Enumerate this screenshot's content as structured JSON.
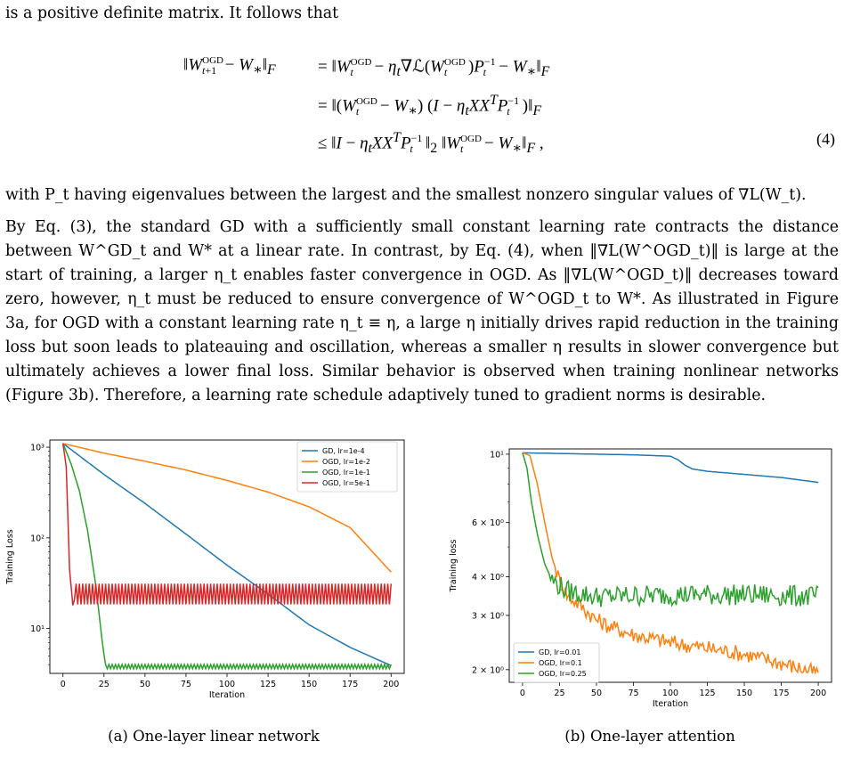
{
  "text": {
    "intro": "is a positive definite matrix. It follows that",
    "eq_number": "(4)",
    "eq_lhs": "‖W^OGD_{t+1} − W*‖_F",
    "eq_line1": "= ‖W^OGD_t − η_t∇L(W^OGD_t)P_t^{-1} − W*‖_F",
    "eq_line2": "= ‖(W^OGD_t − W*)(I − η_t X X^T P_t^{-1})‖_F",
    "eq_line3": "≤ ‖I − η_t X X^T P_t^{-1}‖_2 ‖W^OGD_t − W*‖_F ,",
    "after_eq": "with P_t having eigenvalues between the largest and the smallest nonzero singular values of ∇L(W_t).",
    "main_paragraph": "By Eq. (3), the standard GD with a sufficiently small constant learning rate contracts the distance between W^GD_t and W* at a linear rate. In contrast, by Eq. (4), when ‖∇L(W^OGD_t)‖ is large at the start of training, a larger η_t enables faster convergence in OGD. As ‖∇L(W^OGD_t)‖ decreases toward zero, however, η_t must be reduced to ensure convergence of W^OGD_t to W*. As illustrated in Figure 3a, for OGD with a constant learning rate η_t ≡ η, a large η initially drives rapid reduction in the training loss but soon leads to plateauing and oscillation, whereas a smaller η results in slower convergence but ultimately achieves a lower final loss. Similar behavior is observed when training nonlinear networks (Figure 3b). Therefore, a learning rate schedule adaptively tuned to gradient norms is desirable."
  },
  "captions": [
    "(a) One-layer linear network",
    "(b) One-layer attention"
  ],
  "chart_data": [
    {
      "type": "line",
      "title": "",
      "xlabel": "Iteration",
      "ylabel": "Training Loss",
      "yscale": "log",
      "xlim": [
        -8,
        208
      ],
      "ylim": [
        3.2,
        1200
      ],
      "xticks": [
        0,
        25,
        50,
        75,
        100,
        125,
        150,
        175,
        200
      ],
      "yticks": [
        {
          "v": 10,
          "label": "10¹"
        },
        {
          "v": 100,
          "label": "10²"
        },
        {
          "v": 1000,
          "label": "10³"
        }
      ],
      "legend_position": "top-right",
      "series": [
        {
          "name": "GD, lr=1e-4",
          "color": "#1f77b4",
          "x": [
            0,
            25,
            50,
            75,
            100,
            125,
            150,
            175,
            200
          ],
          "y": [
            1100,
            500,
            240,
            110,
            50,
            24,
            11,
            6.2,
            3.9
          ]
        },
        {
          "name": "OGD, lr=1e-2",
          "color": "#ff7f0e",
          "x": [
            0,
            25,
            50,
            75,
            100,
            125,
            150,
            175,
            200
          ],
          "y": [
            1100,
            860,
            700,
            560,
            430,
            320,
            220,
            130,
            42
          ]
        },
        {
          "name": "OGD, lr=1e-1",
          "color": "#2ca02c",
          "x": [
            0,
            5,
            10,
            15,
            20,
            24,
            26,
            200
          ],
          "y": [
            1100,
            650,
            330,
            120,
            30,
            7,
            3.8,
            3.8
          ],
          "osc": [
            26,
            200,
            0.025
          ]
        },
        {
          "name": "OGD, lr=5e-1",
          "color": "#d62728",
          "x": [
            0,
            2,
            4,
            6,
            8,
            200
          ],
          "y": [
            1100,
            600,
            45,
            18,
            24,
            24
          ],
          "osc": [
            8,
            200,
            0.12
          ]
        }
      ]
    },
    {
      "type": "line",
      "title": "",
      "xlabel": "Iteration",
      "ylabel": "Training loss",
      "yscale": "log",
      "xlim": [
        -9,
        209
      ],
      "ylim": [
        1.82,
        10.4
      ],
      "xticks": [
        0,
        25,
        50,
        75,
        100,
        125,
        150,
        175,
        200
      ],
      "yticks": [
        {
          "v": 10,
          "label": "10¹"
        },
        {
          "v": 6,
          "label": "6 × 10⁰"
        },
        {
          "v": 4,
          "label": "4 × 10⁰"
        },
        {
          "v": 3,
          "label": "3 × 10⁰"
        },
        {
          "v": 2,
          "label": "2 × 10⁰"
        }
      ],
      "legend_position": "bottom-left",
      "series": [
        {
          "name": "GD, lr=0.01",
          "color": "#1f77b4",
          "x": [
            0,
            25,
            50,
            75,
            100,
            105,
            110,
            115,
            125,
            150,
            175,
            200
          ],
          "y": [
            10.1,
            10.05,
            10.0,
            9.95,
            9.85,
            9.6,
            9.2,
            8.95,
            8.8,
            8.6,
            8.4,
            8.1
          ]
        },
        {
          "name": "OGD, lr=0.1",
          "color": "#ff7f0e",
          "x": [
            0,
            5,
            10,
            15,
            20,
            25,
            30,
            40,
            50,
            60,
            75,
            100,
            125,
            150,
            175,
            200
          ],
          "y": [
            10.1,
            9.9,
            8.0,
            6.0,
            4.6,
            3.9,
            3.5,
            3.2,
            2.9,
            2.75,
            2.6,
            2.45,
            2.35,
            2.25,
            2.1,
            1.95
          ]
        },
        {
          "name": "OGD, lr=0.25",
          "color": "#2ca02c",
          "x": [
            0,
            3,
            6,
            10,
            15,
            20,
            30,
            50,
            100,
            150,
            200
          ],
          "y": [
            10.1,
            9.0,
            7.0,
            5.5,
            4.4,
            3.9,
            3.6,
            3.45,
            3.5,
            3.5,
            3.45
          ]
        }
      ]
    }
  ]
}
